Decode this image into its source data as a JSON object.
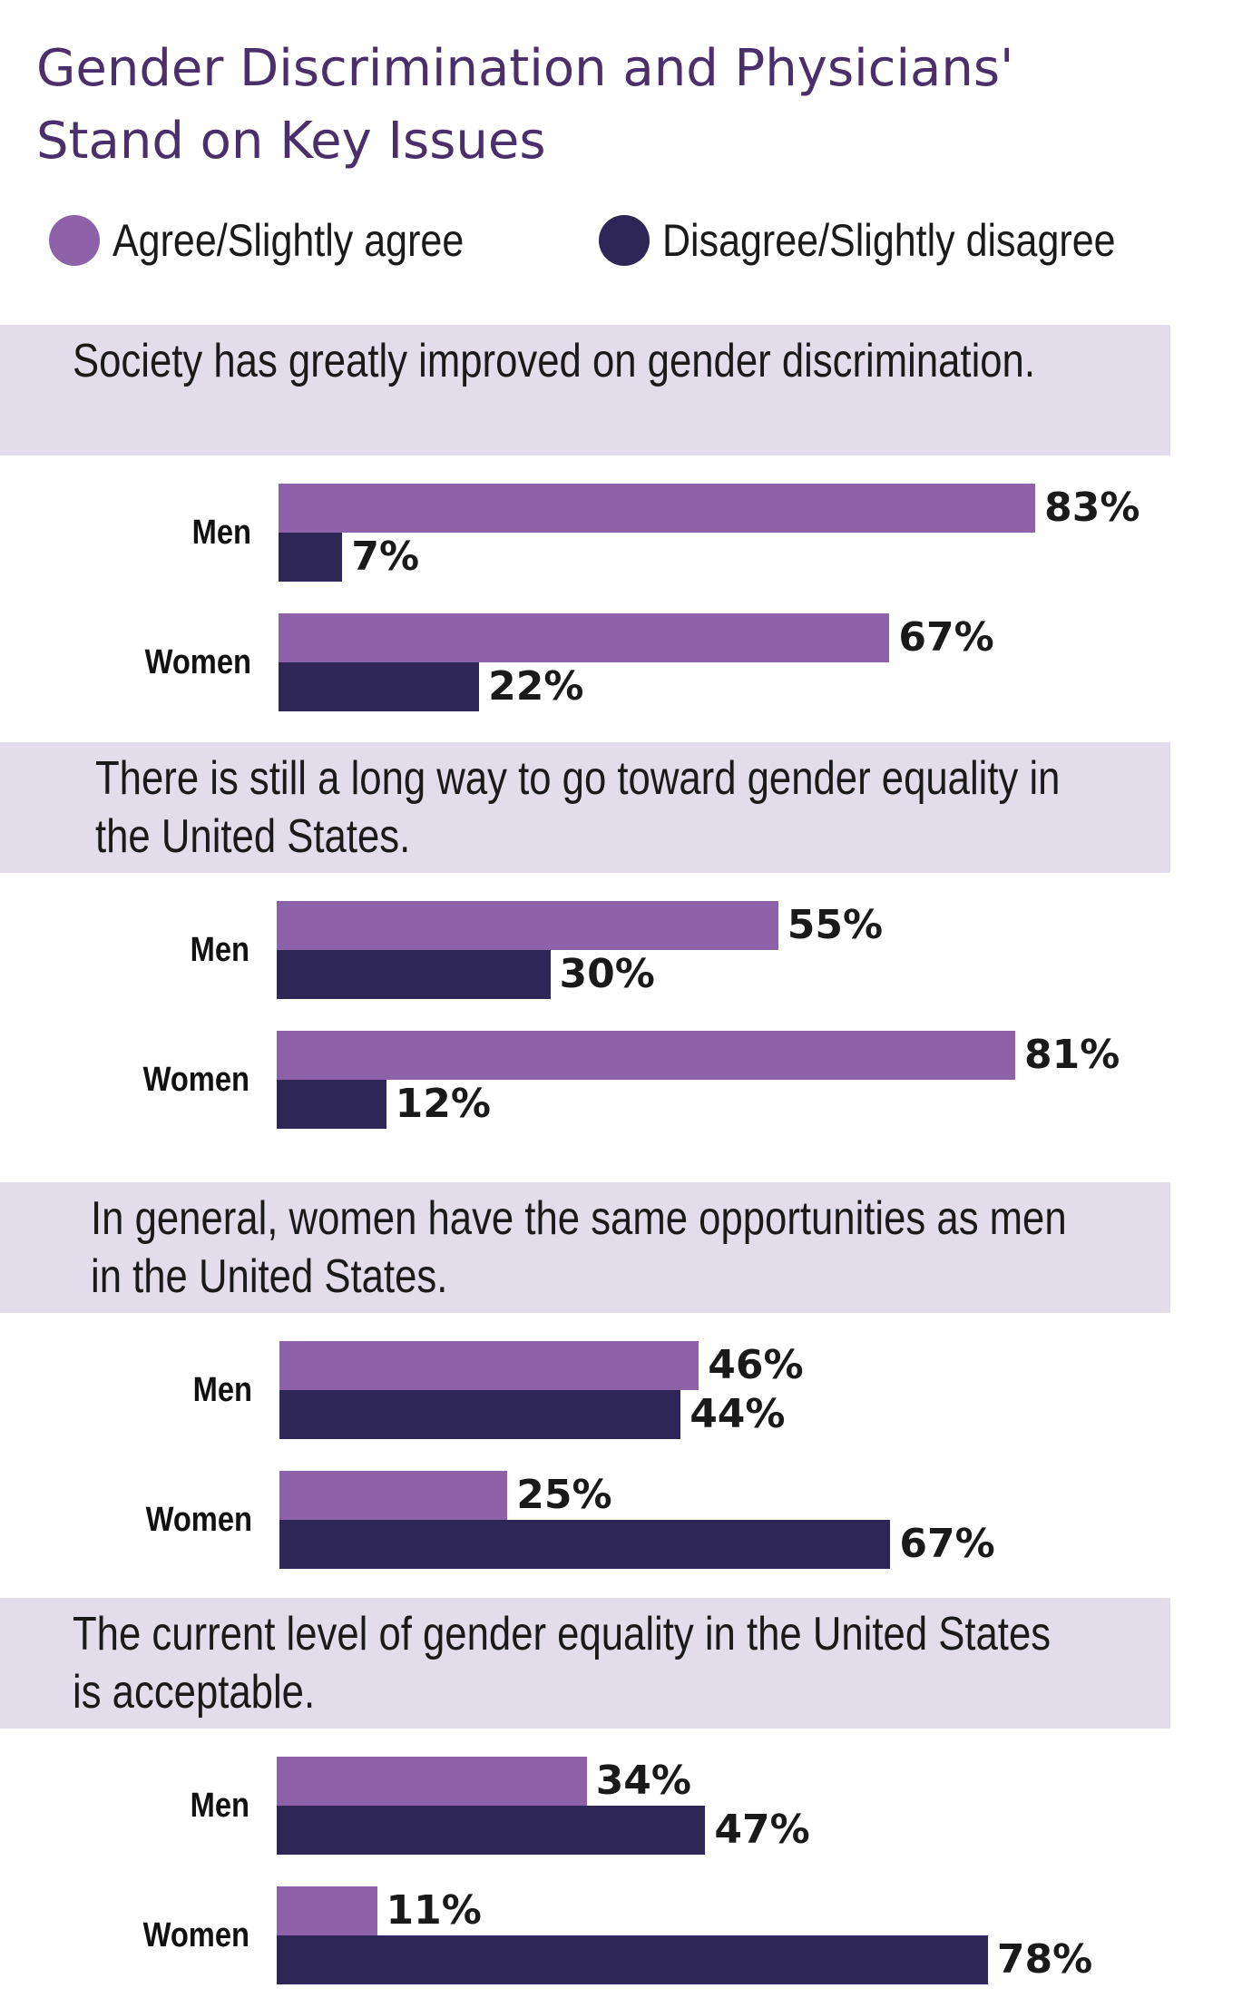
{
  "chart_data": {
    "type": "bar",
    "title": "Gender Discrimination and Physicians' Stand on Key Issues",
    "series": [
      {
        "name": "Agree/Slightly agree",
        "color": "#8e62a8"
      },
      {
        "name": "Disagree/Slightly disagree",
        "color": "#2e2656"
      }
    ],
    "groups": [
      "Men",
      "Women"
    ],
    "unit": "%",
    "xlim": [
      0,
      100
    ],
    "band_color": "#e3dcea",
    "panels": [
      {
        "question": "Society has greatly improved on gender discrimination.",
        "values": [
          {
            "group": "Men",
            "agree": 83,
            "disagree": 7
          },
          {
            "group": "Women",
            "agree": 67,
            "disagree": 22
          }
        ]
      },
      {
        "question": "There is still a long way to go toward gender equality in the United States.",
        "values": [
          {
            "group": "Men",
            "agree": 55,
            "disagree": 30
          },
          {
            "group": "Women",
            "agree": 81,
            "disagree": 12
          }
        ]
      },
      {
        "question": "In general, women have the same opportunities as men in the United States.",
        "values": [
          {
            "group": "Men",
            "agree": 46,
            "disagree": 44
          },
          {
            "group": "Women",
            "agree": 25,
            "disagree": 67
          }
        ]
      },
      {
        "question": "The current level of gender equality in the United States is acceptable.",
        "values": [
          {
            "group": "Men",
            "agree": 34,
            "disagree": 47
          },
          {
            "group": "Women",
            "agree": 11,
            "disagree": 78
          }
        ]
      }
    ]
  }
}
